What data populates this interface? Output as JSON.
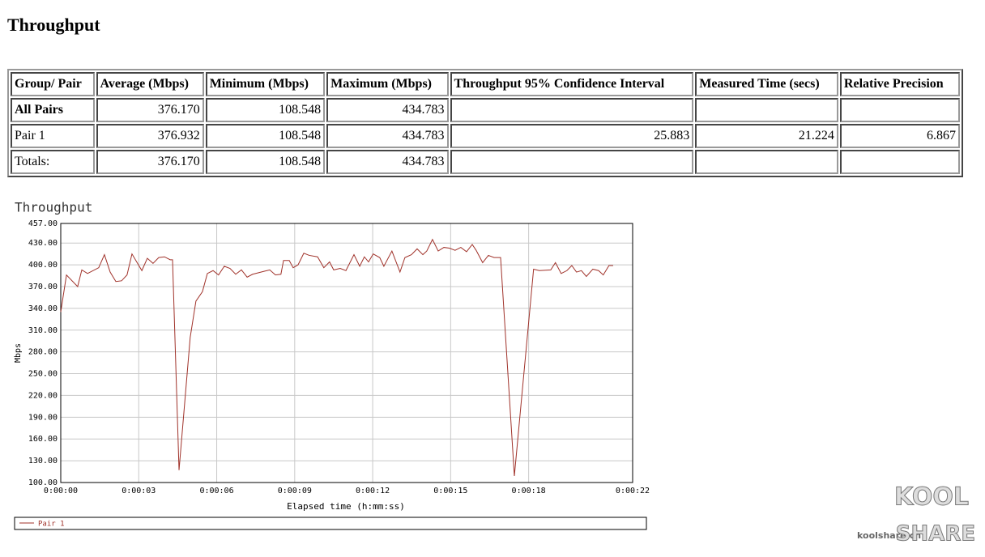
{
  "title": "Throughput",
  "table": {
    "header": [
      "Group/ Pair",
      "Average (Mbps)",
      "Minimum (Mbps)",
      "Maximum (Mbps)",
      "Throughput 95% Confidence Interval",
      "Measured Time (secs)",
      "Relative Precision"
    ],
    "rows": [
      [
        "All Pairs",
        "376.170",
        "108.548",
        "434.783"
      ],
      [
        "Pair 1",
        "376.932",
        "108.548",
        "434.783",
        "25.883",
        "21.224",
        "6.867"
      ],
      [
        "Totals:",
        "376.170",
        "108.548",
        "434.783"
      ]
    ]
  },
  "chart_data": {
    "type": "line",
    "title": "Throughput",
    "x_label": "Elapsed time (h:mm:ss)",
    "y_label": "Mbps",
    "x": [
      0,
      0.22,
      0.65,
      0.81,
      1.03,
      1.46,
      1.68,
      1.9,
      2.12,
      2.34,
      2.55,
      2.74,
      3.12,
      3.33,
      3.55,
      3.77,
      3.99,
      4.21,
      4.3,
      4.55,
      4.98,
      5.2,
      5.45,
      5.64,
      5.86,
      6.07,
      6.29,
      6.51,
      6.73,
      6.95,
      7.17,
      7.38,
      7.82,
      8.04,
      8.26,
      8.47,
      8.57,
      8.79,
      8.94,
      9.13,
      9.35,
      9.56,
      9.88,
      10.12,
      10.34,
      10.5,
      10.75,
      10.97,
      11.28,
      11.5,
      11.68,
      11.84,
      12.02,
      12.27,
      12.43,
      12.74,
      13.05,
      13.24,
      13.49,
      13.71,
      13.93,
      14.08,
      14.3,
      14.52,
      14.74,
      14.95,
      15.17,
      15.39,
      15.61,
      15.83,
      15.98,
      16.23,
      16.45,
      16.67,
      16.92,
      17.45,
      18.19,
      18.41,
      18.85,
      19.03,
      19.25,
      19.47,
      19.66,
      19.84,
      20.03,
      20.22,
      20.47,
      20.69,
      20.87,
      21.09,
      21.25
    ],
    "series": [
      {
        "name": "Pair 1",
        "color": "#a0322a",
        "values": [
          335,
          386,
          370,
          393,
          388,
          396,
          414,
          390,
          377,
          378,
          386,
          415,
          392,
          409,
          402,
          410,
          411,
          407,
          407,
          117,
          300,
          350,
          363,
          388,
          392,
          386,
          398,
          395,
          387,
          393,
          383,
          387,
          391,
          393,
          386,
          387,
          406,
          406,
          396,
          400,
          416,
          413,
          411,
          396,
          404,
          393,
          395,
          392,
          414,
          398,
          411,
          404,
          415,
          410,
          398,
          419,
          390,
          410,
          414,
          422,
          414,
          419,
          435,
          419,
          424,
          423,
          420,
          424,
          418,
          428,
          420,
          403,
          413,
          410,
          410,
          109,
          394,
          392,
          393,
          403,
          388,
          392,
          399,
          390,
          392,
          384,
          394,
          392,
          386,
          399,
          399
        ]
      }
    ],
    "xlim": [
      0,
      22
    ],
    "xticks": [
      {
        "value": 0,
        "label": "0:00:00"
      },
      {
        "value": 3,
        "label": "0:00:03"
      },
      {
        "value": 6,
        "label": "0:00:06"
      },
      {
        "value": 9,
        "label": "0:00:09"
      },
      {
        "value": 12,
        "label": "0:00:12"
      },
      {
        "value": 15,
        "label": "0:00:15"
      },
      {
        "value": 18,
        "label": "0:00:18"
      },
      {
        "value": 22,
        "label": "0:00:22"
      }
    ],
    "ylim": [
      100,
      457
    ],
    "yticks": [
      {
        "value": 100,
        "label": "100.00"
      },
      {
        "value": 130,
        "label": "130.00"
      },
      {
        "value": 160,
        "label": "160.00"
      },
      {
        "value": 190,
        "label": "190.00"
      },
      {
        "value": 220,
        "label": "220.00"
      },
      {
        "value": 250,
        "label": "250.00"
      },
      {
        "value": 280,
        "label": "280.00"
      },
      {
        "value": 310,
        "label": "310.00"
      },
      {
        "value": 340,
        "label": "340.00"
      },
      {
        "value": 370,
        "label": "370.00"
      },
      {
        "value": 400,
        "label": "400.00"
      },
      {
        "value": 430,
        "label": "430.00"
      },
      {
        "value": 457,
        "label": "457.00"
      }
    ],
    "grid": true,
    "legend": "bottom"
  },
  "watermark": {
    "site": "koolshare.cn",
    "logo": [
      "KOOL",
      "SHARE"
    ]
  }
}
